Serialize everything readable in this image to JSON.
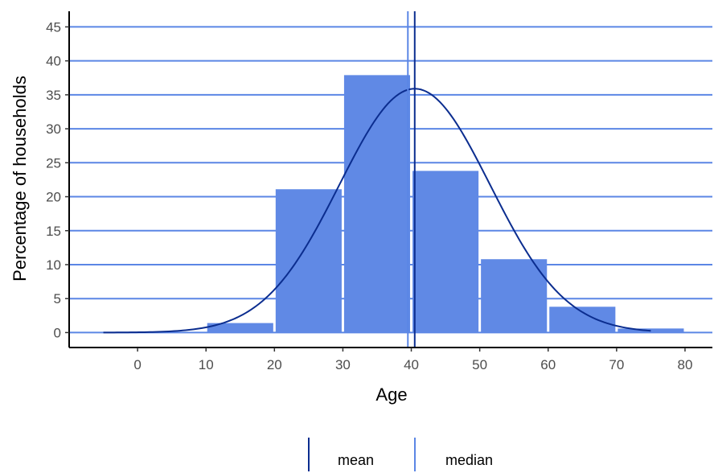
{
  "chart_data": {
    "type": "bar",
    "title": "",
    "xlabel": "Age",
    "ylabel": "Percentage of households",
    "x_ticks": [
      0,
      10,
      20,
      30,
      40,
      50,
      60,
      70,
      80
    ],
    "y_ticks": [
      0,
      5,
      10,
      15,
      20,
      25,
      30,
      35,
      40,
      45
    ],
    "xlim": [
      -10,
      84
    ],
    "ylim": [
      -2.2,
      47.3
    ],
    "bins": [
      {
        "x_start": 10,
        "x_end": 20,
        "value": 1.4
      },
      {
        "x_start": 20,
        "x_end": 30,
        "value": 21.1
      },
      {
        "x_start": 30,
        "x_end": 40,
        "value": 37.9
      },
      {
        "x_start": 40,
        "x_end": 50,
        "value": 23.8
      },
      {
        "x_start": 50,
        "x_end": 60,
        "value": 10.8
      },
      {
        "x_start": 60,
        "x_end": 70,
        "value": 3.8
      },
      {
        "x_start": 70,
        "x_end": 80,
        "value": 0.6
      }
    ],
    "normal_curve": {
      "mean": 40.5,
      "sd": 11.0,
      "peak": 35.9,
      "x_range": [
        -5,
        75
      ]
    },
    "reference_lines": [
      {
        "name": "mean",
        "x": 40.5,
        "color": "#0b2d8f"
      },
      {
        "name": "median",
        "x": 39.5,
        "color": "#5b86e5"
      }
    ],
    "grid": "horizontal",
    "legend_position": "bottom",
    "colors": {
      "bar": "#6089e5",
      "grid": "#5b86e5",
      "curve": "#0b2d8f",
      "axis": "#000000",
      "tick_text": "#4d4d4d"
    }
  },
  "legend": [
    {
      "label": "mean",
      "color": "#0b2d8f"
    },
    {
      "label": "median",
      "color": "#5b86e5"
    }
  ]
}
